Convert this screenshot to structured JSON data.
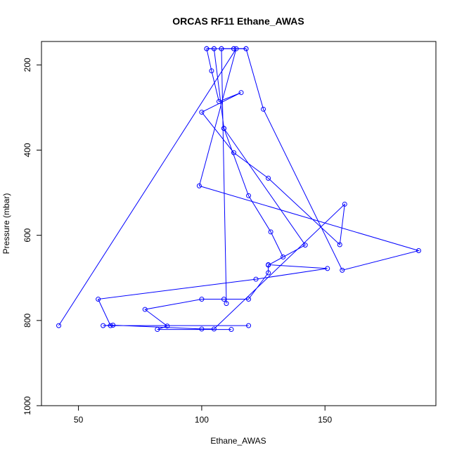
{
  "chart_data": {
    "type": "line",
    "title": "ORCAS RF11 Ethane_AWAS",
    "xlabel": "Ethane_AWAS",
    "ylabel": "Pressure (mbar)",
    "xlim": [
      35,
      195
    ],
    "ylim": [
      1000,
      145
    ],
    "y_reversed": true,
    "grid": false,
    "legend": "none",
    "x_ticks": [
      50,
      100,
      150
    ],
    "y_ticks": [
      200,
      400,
      600,
      800,
      1000
    ],
    "series": [
      {
        "color": "#0000ff",
        "marker": "open-circle",
        "points": [
          [
            112,
            821
          ],
          [
            82,
            821
          ],
          [
            86,
            813
          ],
          [
            77,
            774
          ],
          [
            100,
            750
          ],
          [
            109,
            750
          ],
          [
            119,
            750
          ],
          [
            127,
            688
          ],
          [
            127,
            669
          ],
          [
            151,
            678
          ],
          [
            122,
            703
          ],
          [
            58,
            750
          ],
          [
            63,
            812
          ],
          [
            119,
            812
          ],
          [
            60,
            812
          ],
          [
            64,
            811
          ],
          [
            100,
            820
          ],
          [
            105,
            820
          ],
          [
            158,
            527
          ],
          [
            156,
            622
          ],
          [
            127,
            466
          ],
          [
            113,
            406
          ],
          [
            100,
            311
          ],
          [
            116,
            265
          ],
          [
            107,
            286
          ],
          [
            104,
            214
          ],
          [
            102,
            162
          ],
          [
            105,
            162
          ],
          [
            108,
            162
          ],
          [
            113,
            162
          ],
          [
            118,
            162
          ],
          [
            125,
            304
          ],
          [
            157,
            682
          ],
          [
            188,
            636
          ],
          [
            99,
            484
          ],
          [
            114,
            162
          ],
          [
            42,
            812
          ]
        ]
      },
      {
        "color": "#0000ff",
        "marker": "open-circle",
        "points": [
          [
            102,
            162
          ],
          [
            105,
            162
          ],
          [
            109,
            349
          ],
          [
            142,
            623
          ],
          [
            127,
            670
          ],
          [
            133,
            651
          ],
          [
            128,
            592
          ],
          [
            119,
            507
          ],
          [
            109,
            349
          ]
        ]
      },
      {
        "color": "#0000ff",
        "marker": "open-circle",
        "points": [
          [
            110,
            760
          ],
          [
            108,
            162
          ],
          [
            113,
            162
          ],
          [
            118,
            162
          ]
        ]
      }
    ]
  }
}
